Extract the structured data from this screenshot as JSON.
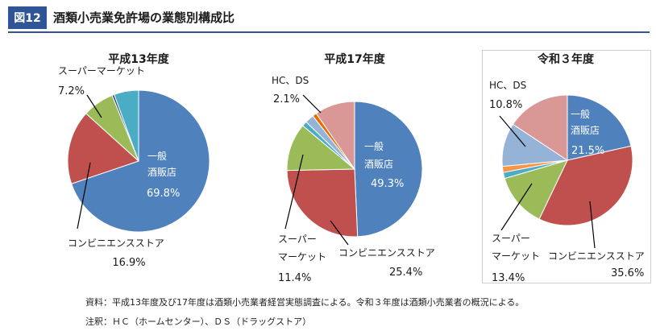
{
  "header": {
    "figure_label": "図12",
    "title": "酒類小売業免許場の業態別構成比"
  },
  "chart_data": [
    {
      "type": "pie",
      "title": "平成13年度",
      "slices": [
        {
          "label": "一般酒販店",
          "value": 69.8,
          "value_text": "69.8%",
          "color": "#4f81bd"
        },
        {
          "label": "コンビニエンスストア",
          "value": 16.9,
          "value_text": "16.9%",
          "color": "#c0504d"
        },
        {
          "label": "スーパーマーケット",
          "value": 7.2,
          "value_text": "7.2%",
          "color": "#9bbb59"
        },
        {
          "label": "",
          "value": 0.5,
          "value_text": "",
          "color": "#2c4d75"
        },
        {
          "label": "",
          "value": 5.6,
          "value_text": "",
          "color": "#4bacc6"
        }
      ]
    },
    {
      "type": "pie",
      "title": "平成17年度",
      "slices": [
        {
          "label": "一般酒販店",
          "value": 49.3,
          "value_text": "49.3%",
          "color": "#4f81bd"
        },
        {
          "label": "コンビニエンスストア",
          "value": 25.4,
          "value_text": "25.4%",
          "color": "#c0504d"
        },
        {
          "label": "スーパーマーケット",
          "value": 11.4,
          "value_text": "11.4%",
          "color": "#9bbb59"
        },
        {
          "label": "",
          "value": 1.2,
          "value_text": "",
          "color": "#4bacc6"
        },
        {
          "label": "HC、DS",
          "value": 2.1,
          "value_text": "2.1%",
          "color": "#95b3d7"
        },
        {
          "label": "",
          "value": 1.0,
          "value_text": "",
          "color": "#e46c0a"
        },
        {
          "label": "",
          "value": 9.6,
          "value_text": "",
          "color": "#d99795"
        }
      ]
    },
    {
      "type": "pie",
      "title": "令和３年度",
      "slices": [
        {
          "label": "一般酒販店",
          "value": 21.5,
          "value_text": "21.5%",
          "color": "#4f81bd"
        },
        {
          "label": "コンビニエンスストア",
          "value": 35.6,
          "value_text": "35.6%",
          "color": "#c0504d"
        },
        {
          "label": "スーパーマーケット",
          "value": 13.4,
          "value_text": "13.4%",
          "color": "#9bbb59"
        },
        {
          "label": "",
          "value": 1.5,
          "value_text": "",
          "color": "#4bacc6"
        },
        {
          "label": "",
          "value": 1.5,
          "value_text": "",
          "color": "#f79646"
        },
        {
          "label": "HC、DS",
          "value": 10.8,
          "value_text": "10.8%",
          "color": "#95b3d7"
        },
        {
          "label": "",
          "value": 15.7,
          "value_text": "",
          "color": "#d99795"
        }
      ]
    }
  ],
  "notes": {
    "source": "資料：平成13年度及び17年度は酒類小売業者経営実態調査による。令和３年度は酒類小売業者の概況による。",
    "note": "注釈：ＨＣ（ホームセンター）、ＤＳ（ドラッグストア）"
  }
}
